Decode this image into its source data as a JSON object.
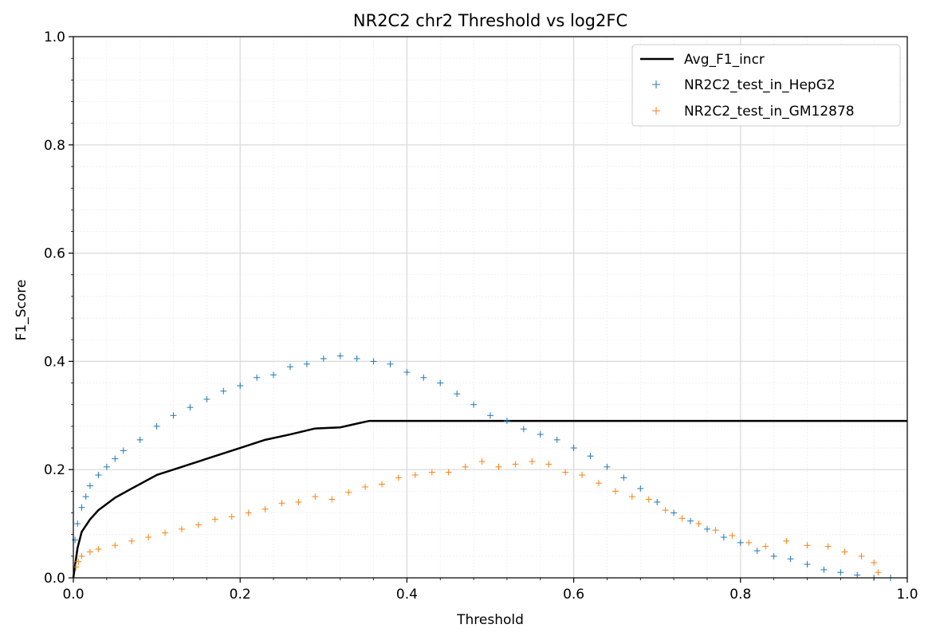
{
  "chart_data": {
    "type": "line",
    "title": "NR2C2 chr2 Threshold vs log2FC",
    "xlabel": "Threshold",
    "ylabel": "F1_Score",
    "xlim": [
      0,
      1.0
    ],
    "ylim": [
      0,
      1.0
    ],
    "x_ticks": [
      "0.0",
      "0.2",
      "0.4",
      "0.6",
      "0.8",
      "1.0"
    ],
    "y_ticks": [
      "0.0",
      "0.2",
      "0.4",
      "0.6",
      "0.8",
      "1.0"
    ],
    "grid": true,
    "minor_grid": true,
    "legend_position": "top-right",
    "colors": {
      "Avg_F1_incr": "#000000",
      "NR2C2_test_in_HepG2": "#1f77b4",
      "NR2C2_test_in_GM12878": "#ff7f0e"
    },
    "series": [
      {
        "name": "Avg_F1_incr",
        "style": "line",
        "x": [
          0.0,
          0.005,
          0.01,
          0.02,
          0.03,
          0.05,
          0.07,
          0.1,
          0.13,
          0.16,
          0.2,
          0.23,
          0.26,
          0.29,
          0.32,
          0.34,
          0.355,
          0.4,
          0.5,
          0.6,
          0.7,
          0.8,
          0.9,
          1.0
        ],
        "y": [
          0.0,
          0.055,
          0.085,
          0.108,
          0.125,
          0.148,
          0.165,
          0.19,
          0.205,
          0.22,
          0.24,
          0.255,
          0.265,
          0.276,
          0.278,
          0.285,
          0.29,
          0.29,
          0.29,
          0.29,
          0.29,
          0.29,
          0.29,
          0.29
        ]
      },
      {
        "name": "NR2C2_test_in_HepG2",
        "style": "scatter",
        "marker": "+",
        "x": [
          0.0,
          0.002,
          0.005,
          0.01,
          0.015,
          0.02,
          0.03,
          0.04,
          0.05,
          0.06,
          0.08,
          0.1,
          0.12,
          0.14,
          0.16,
          0.18,
          0.2,
          0.22,
          0.24,
          0.26,
          0.28,
          0.3,
          0.32,
          0.34,
          0.36,
          0.38,
          0.4,
          0.42,
          0.44,
          0.46,
          0.48,
          0.5,
          0.52,
          0.54,
          0.56,
          0.58,
          0.6,
          0.62,
          0.64,
          0.66,
          0.68,
          0.7,
          0.72,
          0.74,
          0.76,
          0.78,
          0.8,
          0.82,
          0.84,
          0.86,
          0.88,
          0.9,
          0.92,
          0.94,
          0.96,
          0.98
        ],
        "y": [
          0.0,
          0.07,
          0.1,
          0.13,
          0.15,
          0.17,
          0.19,
          0.205,
          0.22,
          0.235,
          0.255,
          0.28,
          0.3,
          0.315,
          0.33,
          0.345,
          0.355,
          0.37,
          0.375,
          0.39,
          0.395,
          0.405,
          0.41,
          0.405,
          0.4,
          0.395,
          0.38,
          0.37,
          0.36,
          0.34,
          0.32,
          0.3,
          0.29,
          0.275,
          0.265,
          0.255,
          0.24,
          0.225,
          0.205,
          0.185,
          0.165,
          0.14,
          0.12,
          0.105,
          0.09,
          0.075,
          0.065,
          0.05,
          0.04,
          0.035,
          0.025,
          0.015,
          0.01,
          0.005,
          0.0,
          0.0
        ]
      },
      {
        "name": "NR2C2_test_in_GM12878",
        "style": "scatter",
        "marker": "+",
        "x": [
          0.0,
          0.003,
          0.006,
          0.01,
          0.02,
          0.03,
          0.05,
          0.07,
          0.09,
          0.11,
          0.13,
          0.15,
          0.17,
          0.19,
          0.21,
          0.23,
          0.25,
          0.27,
          0.29,
          0.31,
          0.33,
          0.35,
          0.37,
          0.39,
          0.41,
          0.43,
          0.45,
          0.47,
          0.49,
          0.51,
          0.53,
          0.55,
          0.57,
          0.59,
          0.61,
          0.63,
          0.65,
          0.67,
          0.69,
          0.71,
          0.73,
          0.75,
          0.77,
          0.79,
          0.81,
          0.83,
          0.855,
          0.88,
          0.905,
          0.925,
          0.945,
          0.96,
          0.965
        ],
        "y": [
          0.0,
          0.02,
          0.03,
          0.04,
          0.048,
          0.053,
          0.06,
          0.068,
          0.075,
          0.083,
          0.09,
          0.098,
          0.108,
          0.113,
          0.12,
          0.127,
          0.138,
          0.14,
          0.15,
          0.145,
          0.158,
          0.168,
          0.173,
          0.185,
          0.19,
          0.195,
          0.195,
          0.205,
          0.215,
          0.205,
          0.21,
          0.215,
          0.21,
          0.195,
          0.19,
          0.175,
          0.16,
          0.15,
          0.145,
          0.125,
          0.11,
          0.1,
          0.088,
          0.078,
          0.065,
          0.058,
          0.068,
          0.06,
          0.058,
          0.048,
          0.04,
          0.028,
          0.01
        ]
      }
    ]
  }
}
